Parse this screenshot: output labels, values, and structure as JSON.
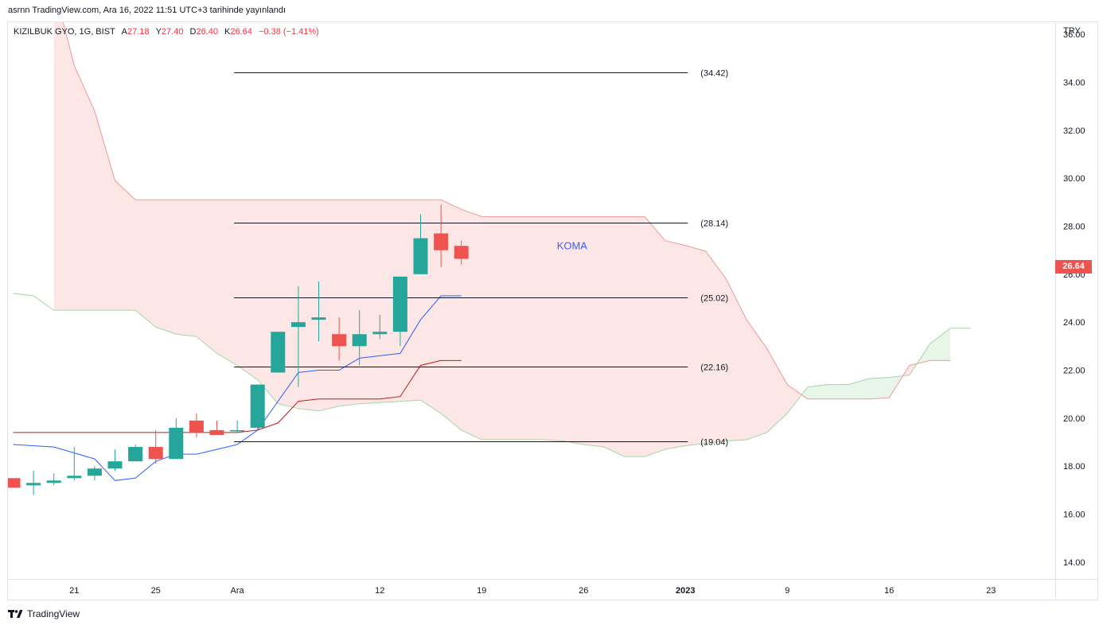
{
  "header": {
    "published": "asrnn TradingView.com, Ara 16, 2022 11:51 UTC+3 tarihinde yayınlandı"
  },
  "legend": {
    "symbol": "KIZILBUK GYO, 1G, BIST",
    "open_label": "A",
    "open": "27.18",
    "high_label": "Y",
    "high": "27.40",
    "low_label": "D",
    "low": "26.40",
    "close_label": "K",
    "close": "26.64",
    "change": "−0.38 (−1.41%)"
  },
  "currency": "TRY",
  "last_price": "26.64",
  "footer": {
    "brand": "TradingView"
  },
  "colors": {
    "up": "#26a69a",
    "down": "#ef5350",
    "tenkan": "#2962ff",
    "kijun": "#b71c1c",
    "cloud_bear": "#fde7e6",
    "cloud_bull": "#e8f5e9",
    "annotation": "#3f5efb"
  },
  "chart_data": {
    "type": "candlestick",
    "y_ticks": [
      "36.00",
      "34.00",
      "32.00",
      "30.00",
      "28.00",
      "26.00",
      "24.00",
      "22.00",
      "20.00",
      "18.00",
      "16.00",
      "14.00"
    ],
    "ylim": [
      13.3,
      36.5
    ],
    "x_ticks": [
      {
        "label": "21",
        "i": 3
      },
      {
        "label": "25",
        "i": 7
      },
      {
        "label": "Ara",
        "i": 11
      },
      {
        "label": "12",
        "i": 18
      },
      {
        "label": "19",
        "i": 23
      },
      {
        "label": "26",
        "i": 28
      },
      {
        "label": "2023",
        "i": 33
      },
      {
        "label": "9",
        "i": 38
      },
      {
        "label": "16",
        "i": 43
      },
      {
        "label": "23",
        "i": 48
      }
    ],
    "candles": [
      {
        "o": 17.5,
        "h": 17.5,
        "l": 17.1,
        "c": 17.1
      },
      {
        "o": 17.2,
        "h": 17.8,
        "l": 16.8,
        "c": 17.3
      },
      {
        "o": 17.3,
        "h": 17.7,
        "l": 17.2,
        "c": 17.4
      },
      {
        "o": 17.5,
        "h": 18.8,
        "l": 17.4,
        "c": 17.6
      },
      {
        "o": 17.6,
        "h": 18.0,
        "l": 17.4,
        "c": 17.9
      },
      {
        "o": 17.9,
        "h": 18.7,
        "l": 17.8,
        "c": 18.2
      },
      {
        "o": 18.2,
        "h": 18.9,
        "l": 18.2,
        "c": 18.8
      },
      {
        "o": 18.8,
        "h": 19.5,
        "l": 18.1,
        "c": 18.3
      },
      {
        "o": 18.3,
        "h": 20.0,
        "l": 18.3,
        "c": 19.6
      },
      {
        "o": 19.9,
        "h": 20.2,
        "l": 19.2,
        "c": 19.4
      },
      {
        "o": 19.5,
        "h": 19.9,
        "l": 19.3,
        "c": 19.3
      },
      {
        "o": 19.5,
        "h": 19.9,
        "l": 19.4,
        "c": 19.5
      },
      {
        "o": 19.6,
        "h": 21.4,
        "l": 19.5,
        "c": 21.4
      },
      {
        "o": 21.9,
        "h": 23.6,
        "l": 21.9,
        "c": 23.6
      },
      {
        "o": 23.8,
        "h": 25.5,
        "l": 21.3,
        "c": 24.0
      },
      {
        "o": 24.1,
        "h": 25.7,
        "l": 23.2,
        "c": 24.2
      },
      {
        "o": 23.5,
        "h": 24.2,
        "l": 22.4,
        "c": 23.0
      },
      {
        "o": 23.0,
        "h": 24.5,
        "l": 22.2,
        "c": 23.5
      },
      {
        "o": 23.5,
        "h": 24.3,
        "l": 23.3,
        "c": 23.6
      },
      {
        "o": 23.6,
        "h": 25.9,
        "l": 23.0,
        "c": 25.9
      },
      {
        "o": 26.0,
        "h": 28.5,
        "l": 26.0,
        "c": 27.5
      },
      {
        "o": 27.7,
        "h": 28.9,
        "l": 26.3,
        "c": 27.0
      },
      {
        "o": 27.18,
        "h": 27.4,
        "l": 26.4,
        "c": 26.64
      }
    ],
    "tenkan": [
      [
        0,
        18.9
      ],
      [
        2,
        18.8
      ],
      [
        4,
        18.3
      ],
      [
        5,
        17.4
      ],
      [
        6,
        17.5
      ],
      [
        7,
        18.2
      ],
      [
        8,
        18.5
      ],
      [
        9,
        18.5
      ],
      [
        10,
        18.7
      ],
      [
        11,
        18.9
      ],
      [
        12,
        19.5
      ],
      [
        13,
        20.7
      ],
      [
        14,
        21.9
      ],
      [
        15,
        22.0
      ],
      [
        16,
        22.0
      ],
      [
        17,
        22.5
      ],
      [
        18,
        22.6
      ],
      [
        19,
        22.7
      ],
      [
        20,
        24.1
      ],
      [
        21,
        25.1
      ],
      [
        22,
        25.1
      ]
    ],
    "kijun": [
      [
        0,
        19.4
      ],
      [
        11,
        19.4
      ],
      [
        12,
        19.5
      ],
      [
        13,
        19.8
      ],
      [
        14,
        20.7
      ],
      [
        15,
        20.8
      ],
      [
        16,
        20.8
      ],
      [
        18,
        20.8
      ],
      [
        19,
        20.9
      ],
      [
        20,
        22.2
      ],
      [
        21,
        22.4
      ],
      [
        22,
        22.4
      ]
    ],
    "span_a": [
      [
        0,
        25.2
      ],
      [
        1,
        25.1
      ],
      [
        2,
        24.5
      ],
      [
        6,
        24.5
      ],
      [
        7,
        23.8
      ],
      [
        8,
        23.5
      ],
      [
        9,
        23.4
      ],
      [
        10,
        22.7
      ],
      [
        11,
        22.2
      ],
      [
        12,
        21.6
      ],
      [
        13,
        20.6
      ],
      [
        14,
        20.4
      ],
      [
        15,
        20.3
      ],
      [
        16,
        20.5
      ],
      [
        17,
        20.6
      ],
      [
        19,
        20.7
      ],
      [
        20,
        20.75
      ],
      [
        21,
        20.2
      ],
      [
        22,
        19.5
      ],
      [
        23,
        19.1
      ],
      [
        26,
        19.1
      ],
      [
        27,
        19.05
      ],
      [
        28,
        18.9
      ],
      [
        29,
        18.8
      ],
      [
        30,
        18.4
      ],
      [
        31,
        18.4
      ],
      [
        32,
        18.7
      ],
      [
        33,
        18.85
      ],
      [
        34,
        18.95
      ],
      [
        35,
        19.05
      ],
      [
        36,
        19.1
      ],
      [
        37,
        19.4
      ],
      [
        38,
        20.2
      ],
      [
        39,
        21.3
      ],
      [
        40,
        21.4
      ],
      [
        41,
        21.4
      ],
      [
        42,
        21.65
      ],
      [
        43,
        21.7
      ],
      [
        44,
        21.8
      ],
      [
        45,
        23.1
      ],
      [
        46,
        23.75
      ],
      [
        47,
        23.75
      ]
    ],
    "span_b": [
      [
        2,
        38.0
      ],
      [
        3,
        34.7
      ],
      [
        4,
        32.8
      ],
      [
        5,
        29.9
      ],
      [
        6,
        29.1
      ],
      [
        21,
        29.1
      ],
      [
        22,
        28.7
      ],
      [
        23,
        28.4
      ],
      [
        31,
        28.4
      ],
      [
        32,
        27.4
      ],
      [
        33,
        27.2
      ],
      [
        34,
        26.95
      ],
      [
        35,
        25.8
      ],
      [
        36,
        24.1
      ],
      [
        37,
        22.9
      ],
      [
        38,
        21.4
      ],
      [
        39,
        20.8
      ],
      [
        40,
        20.8
      ],
      [
        41,
        20.8
      ],
      [
        42,
        20.8
      ],
      [
        43,
        20.85
      ],
      [
        44,
        22.2
      ],
      [
        45,
        22.4
      ],
      [
        46,
        22.4
      ]
    ],
    "hlines": [
      {
        "value": 34.42,
        "label": "(34.42)",
        "i0": 11,
        "i1": 33
      },
      {
        "value": 28.14,
        "label": "(28.14)",
        "i0": 11,
        "i1": 33
      },
      {
        "value": 25.02,
        "label": "(25.02)",
        "i0": 11,
        "i1": 33
      },
      {
        "value": 22.16,
        "label": "(22.16)",
        "i0": 11,
        "i1": 33
      },
      {
        "value": 19.04,
        "label": "(19.04)",
        "i0": 11,
        "i1": 33
      }
    ],
    "annotation": {
      "text": "KOMA",
      "i": 27,
      "value": 27.2
    }
  }
}
